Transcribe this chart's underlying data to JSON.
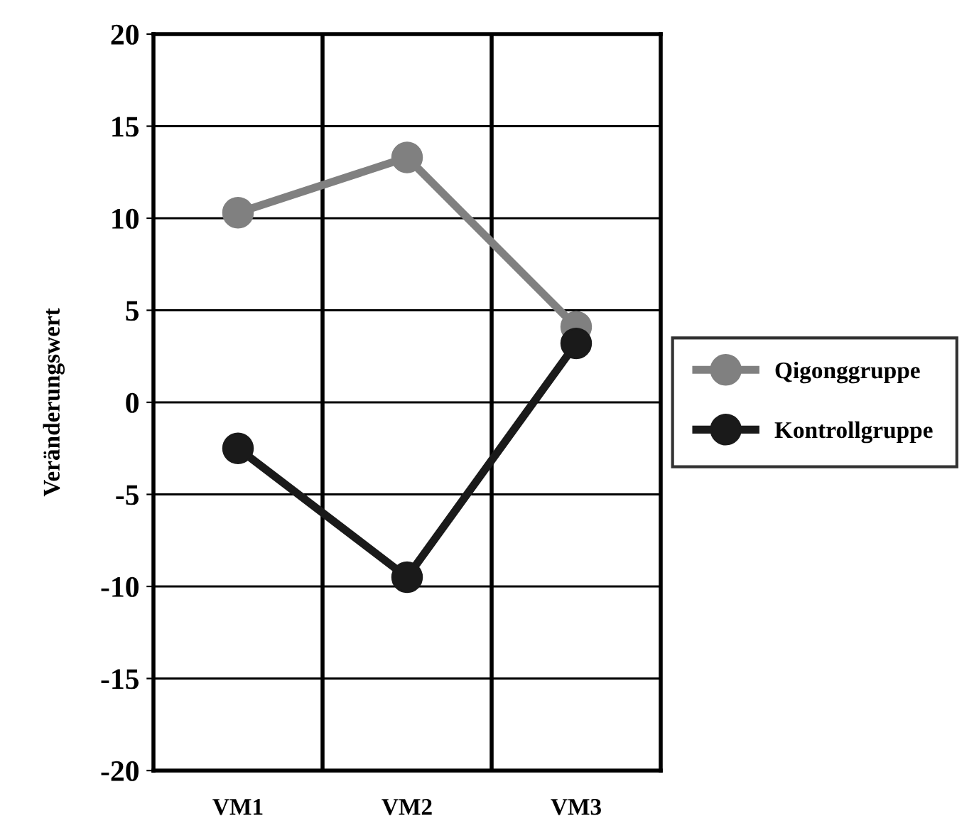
{
  "chart_data": {
    "type": "line",
    "ylabel": "Veränderungswert",
    "categories": [
      "VM1",
      "VM2",
      "VM3"
    ],
    "series": [
      {
        "name": "Qigonggruppe",
        "color": "#808080",
        "values": [
          10.3,
          13.3,
          4.1
        ]
      },
      {
        "name": "Kontrollgruppe",
        "color": "#1a1a1a",
        "values": [
          -2.5,
          -9.5,
          3.2
        ]
      }
    ],
    "ylim": [
      -20,
      20
    ],
    "yticks": [
      -20,
      -15,
      -10,
      -5,
      0,
      5,
      10,
      15,
      20
    ],
    "grid": true,
    "legend": "right",
    "marker": "circle",
    "line_style": "solid"
  }
}
